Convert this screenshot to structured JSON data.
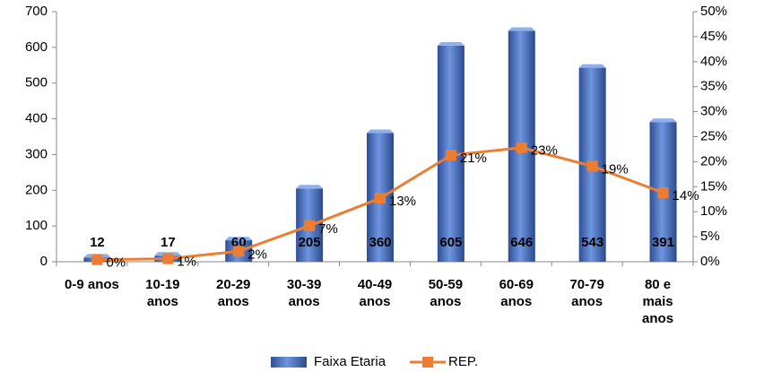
{
  "chart_data": {
    "type": "bar-line",
    "categories": [
      "0-9 anos",
      "10-19 anos",
      "20-29 anos",
      "30-39 anos",
      "40-49 anos",
      "50-59 anos",
      "60-69 anos",
      "70-79 anos",
      "80 e mais anos"
    ],
    "series": [
      {
        "name": "Faixa Etaria",
        "type": "bar",
        "color": "#4a72c4",
        "values": [
          12,
          17,
          60,
          205,
          360,
          605,
          646,
          543,
          391
        ]
      },
      {
        "name": "REP.",
        "type": "line",
        "axis": "y2",
        "color": "#ed7d31",
        "values": [
          0.4,
          0.6,
          2.1,
          7.2,
          12.7,
          21.3,
          22.8,
          19.1,
          13.8
        ],
        "value_labels": [
          "0%",
          "1%",
          "2%",
          "7%",
          "13%",
          "21%",
          "23%",
          "19%",
          "14%"
        ]
      }
    ],
    "ylim": [
      0,
      700
    ],
    "yticks": [
      0,
      100,
      200,
      300,
      400,
      500,
      600,
      700
    ],
    "y2lim": [
      0,
      50
    ],
    "y2ticks": [
      {
        "value": 0,
        "label": "0%"
      },
      {
        "value": 5,
        "label": "5%"
      },
      {
        "value": 10,
        "label": "10%"
      },
      {
        "value": 15,
        "label": "15%"
      },
      {
        "value": 20,
        "label": "20%"
      },
      {
        "value": 25,
        "label": "25%"
      },
      {
        "value": 30,
        "label": "30%"
      },
      {
        "value": 35,
        "label": "35%"
      },
      {
        "value": 40,
        "label": "40%"
      },
      {
        "value": 45,
        "label": "45%"
      },
      {
        "value": 50,
        "label": "50%"
      }
    ],
    "legend": "bottom"
  }
}
